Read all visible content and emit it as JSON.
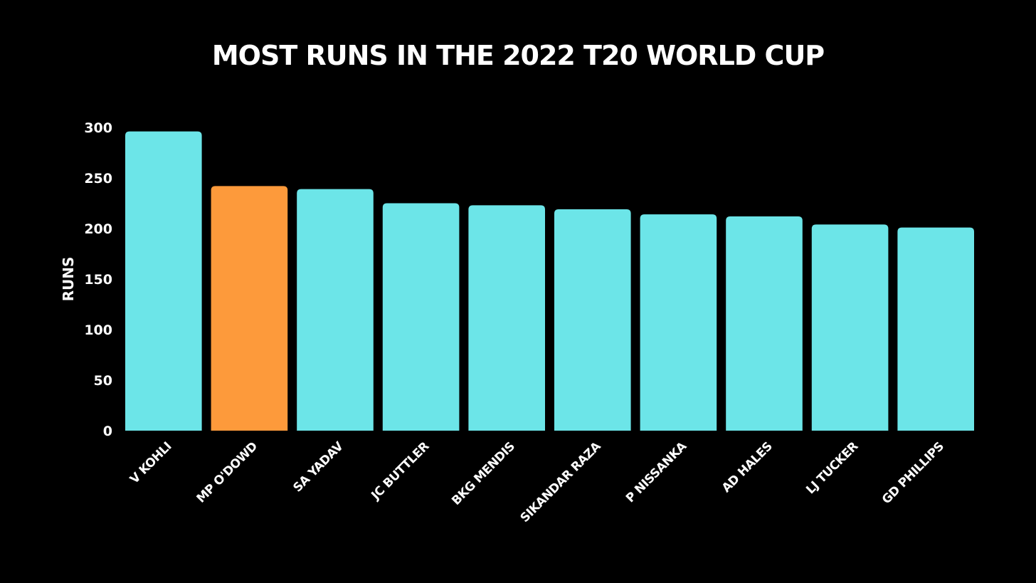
{
  "chart_data": {
    "type": "bar",
    "title": "MOST RUNS IN THE 2022 T20 WORLD CUP",
    "xlabel": "",
    "ylabel": "RUNS",
    "ylim": [
      0,
      300
    ],
    "yticks": [
      0,
      50,
      100,
      150,
      200,
      250,
      300
    ],
    "grid": false,
    "categories": [
      "V KOHLI",
      "MP O'DOWD",
      "SA YADAV",
      "JC BUTTLER",
      "BKG MENDIS",
      "SIKANDAR RAZA",
      "P NISSANKA",
      "AD HALES",
      "LJ TUCKER",
      "GD PHILLIPS"
    ],
    "values": [
      296,
      242,
      239,
      225,
      223,
      219,
      214,
      212,
      204,
      201
    ],
    "highlight_index": 1,
    "colors": {
      "bar": "#6ce5e8",
      "highlight": "#fd9a3b",
      "background": "#000000",
      "text": "#ffffff"
    }
  }
}
